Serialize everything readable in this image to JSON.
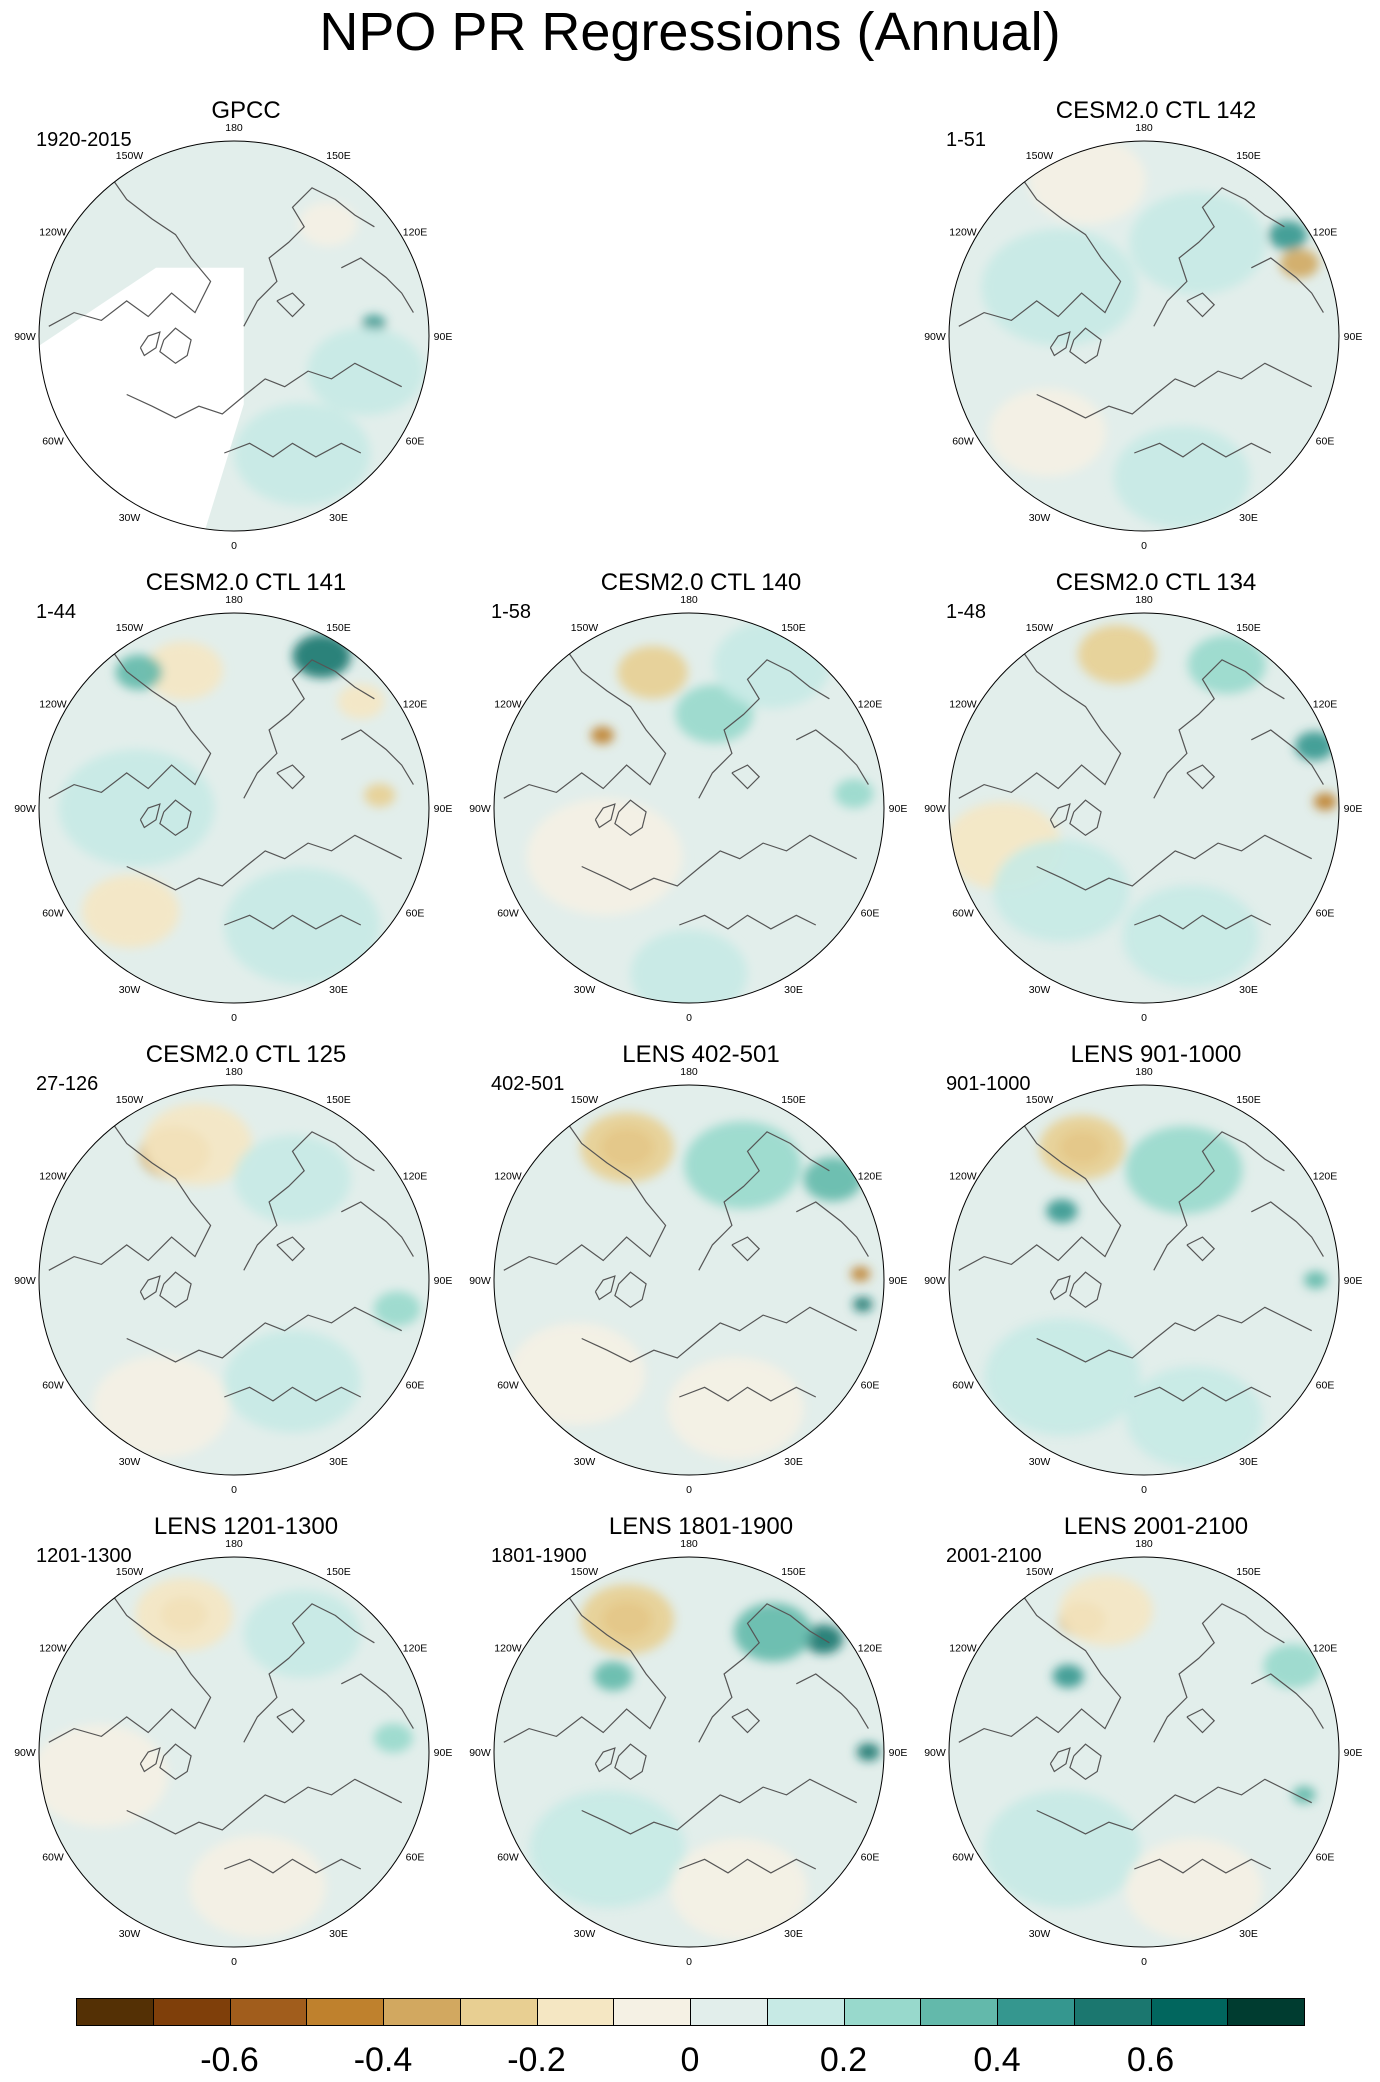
{
  "title": "NPO PR Regressions (Annual)",
  "lon_labels": [
    "180",
    "150E",
    "120E",
    "90E",
    "60E",
    "30E",
    "0",
    "30W",
    "60W",
    "90W",
    "120W",
    "150W"
  ],
  "panels": [
    {
      "title": "GPCC",
      "period": "1920-2015",
      "land_masked": true,
      "features": [
        {
          "lon": 95,
          "r": 0.72,
          "value": 0.4,
          "size": 0.06
        },
        {
          "lon": 75,
          "r": 0.7,
          "value": 0.15,
          "size": 0.3
        },
        {
          "lon": 140,
          "r": 0.75,
          "value": -0.1,
          "size": 0.15
        },
        {
          "lon": 30,
          "r": 0.7,
          "value": 0.1,
          "size": 0.35
        }
      ]
    },
    {
      "title": "CESM2.0 CTL 142",
      "period": "1-51",
      "land_masked": false,
      "features": [
        {
          "lon": 115,
          "r": 0.88,
          "value": -0.4,
          "size": 0.1
        },
        {
          "lon": 125,
          "r": 0.9,
          "value": 0.4,
          "size": 0.1
        },
        {
          "lon": -160,
          "r": 0.85,
          "value": -0.1,
          "size": 0.3
        },
        {
          "lon": -120,
          "r": 0.5,
          "value": 0.1,
          "size": 0.4
        },
        {
          "lon": 150,
          "r": 0.55,
          "value": 0.15,
          "size": 0.35
        },
        {
          "lon": -45,
          "r": 0.7,
          "value": -0.1,
          "size": 0.3
        },
        {
          "lon": 15,
          "r": 0.75,
          "value": 0.15,
          "size": 0.35
        }
      ]
    },
    {
      "title": "CESM2.0 CTL 141",
      "period": "1-44",
      "land_masked": false,
      "features": [
        {
          "lon": 150,
          "r": 0.9,
          "value": 0.5,
          "size": 0.15
        },
        {
          "lon": -160,
          "r": 0.75,
          "value": -0.2,
          "size": 0.2
        },
        {
          "lon": -145,
          "r": 0.85,
          "value": 0.3,
          "size": 0.12
        },
        {
          "lon": 95,
          "r": 0.75,
          "value": -0.3,
          "size": 0.08
        },
        {
          "lon": 130,
          "r": 0.85,
          "value": -0.2,
          "size": 0.12
        },
        {
          "lon": -90,
          "r": 0.5,
          "value": 0.15,
          "size": 0.4
        },
        {
          "lon": -45,
          "r": 0.75,
          "value": -0.15,
          "size": 0.25
        },
        {
          "lon": 30,
          "r": 0.7,
          "value": 0.1,
          "size": 0.4
        }
      ]
    },
    {
      "title": "CESM2.0 CTL 140",
      "period": "1-58",
      "land_masked": false,
      "features": [
        {
          "lon": -165,
          "r": 0.72,
          "value": -0.3,
          "size": 0.18
        },
        {
          "lon": -130,
          "r": 0.58,
          "value": -0.5,
          "size": 0.06
        },
        {
          "lon": 165,
          "r": 0.5,
          "value": 0.2,
          "size": 0.2
        },
        {
          "lon": 150,
          "r": 0.85,
          "value": 0.15,
          "size": 0.3
        },
        {
          "lon": 95,
          "r": 0.85,
          "value": 0.25,
          "size": 0.1
        },
        {
          "lon": -60,
          "r": 0.5,
          "value": -0.1,
          "size": 0.4
        },
        {
          "lon": 0,
          "r": 0.85,
          "value": 0.1,
          "size": 0.3
        }
      ]
    },
    {
      "title": "CESM2.0 CTL 134",
      "period": "1-48",
      "land_masked": false,
      "features": [
        {
          "lon": -170,
          "r": 0.8,
          "value": -0.3,
          "size": 0.2
        },
        {
          "lon": 92,
          "r": 0.93,
          "value": -0.5,
          "size": 0.06
        },
        {
          "lon": 110,
          "r": 0.93,
          "value": 0.4,
          "size": 0.1
        },
        {
          "lon": 150,
          "r": 0.85,
          "value": 0.25,
          "size": 0.2
        },
        {
          "lon": -75,
          "r": 0.75,
          "value": -0.15,
          "size": 0.3
        },
        {
          "lon": -45,
          "r": 0.6,
          "value": 0.1,
          "size": 0.35
        },
        {
          "lon": 20,
          "r": 0.7,
          "value": 0.1,
          "size": 0.35
        }
      ]
    },
    {
      "title": "CESM2.0 CTL 125",
      "period": "27-126",
      "land_masked": false,
      "features": [
        {
          "lon": -155,
          "r": 0.72,
          "value": -0.4,
          "size": 0.18
        },
        {
          "lon": -165,
          "r": 0.72,
          "value": -0.2,
          "size": 0.28
        },
        {
          "lon": 150,
          "r": 0.6,
          "value": 0.15,
          "size": 0.3
        },
        {
          "lon": 80,
          "r": 0.85,
          "value": 0.2,
          "size": 0.12
        },
        {
          "lon": -30,
          "r": 0.75,
          "value": -0.1,
          "size": 0.35
        },
        {
          "lon": 30,
          "r": 0.6,
          "value": 0.1,
          "size": 0.35
        }
      ]
    },
    {
      "title": "LENS 402-501",
      "period": "402-501",
      "land_masked": false,
      "features": [
        {
          "lon": -155,
          "r": 0.75,
          "value": -0.5,
          "size": 0.14
        },
        {
          "lon": -155,
          "r": 0.75,
          "value": -0.3,
          "size": 0.24
        },
        {
          "lon": 155,
          "r": 0.65,
          "value": 0.25,
          "size": 0.3
        },
        {
          "lon": 125,
          "r": 0.9,
          "value": 0.35,
          "size": 0.15
        },
        {
          "lon": 92,
          "r": 0.88,
          "value": -0.5,
          "size": 0.05
        },
        {
          "lon": 82,
          "r": 0.9,
          "value": 0.5,
          "size": 0.05
        },
        {
          "lon": -50,
          "r": 0.75,
          "value": -0.1,
          "size": 0.35
        },
        {
          "lon": 20,
          "r": 0.7,
          "value": -0.08,
          "size": 0.35
        }
      ]
    },
    {
      "title": "LENS 901-1000",
      "period": "901-1000",
      "land_masked": false,
      "features": [
        {
          "lon": -155,
          "r": 0.75,
          "value": -0.45,
          "size": 0.12
        },
        {
          "lon": -155,
          "r": 0.75,
          "value": -0.25,
          "size": 0.22
        },
        {
          "lon": 160,
          "r": 0.6,
          "value": 0.2,
          "size": 0.3
        },
        {
          "lon": -130,
          "r": 0.55,
          "value": 0.4,
          "size": 0.08
        },
        {
          "lon": 90,
          "r": 0.88,
          "value": 0.3,
          "size": 0.06
        },
        {
          "lon": -40,
          "r": 0.65,
          "value": 0.1,
          "size": 0.4
        },
        {
          "lon": 20,
          "r": 0.75,
          "value": 0.1,
          "size": 0.35
        }
      ]
    },
    {
      "title": "LENS 1201-1300",
      "period": "1201-1300",
      "land_masked": false,
      "features": [
        {
          "lon": -160,
          "r": 0.75,
          "value": -0.4,
          "size": 0.12
        },
        {
          "lon": -160,
          "r": 0.75,
          "value": -0.2,
          "size": 0.25
        },
        {
          "lon": 150,
          "r": 0.7,
          "value": 0.15,
          "size": 0.3
        },
        {
          "lon": 95,
          "r": 0.82,
          "value": 0.2,
          "size": 0.1
        },
        {
          "lon": -80,
          "r": 0.7,
          "value": -0.1,
          "size": 0.35
        },
        {
          "lon": 10,
          "r": 0.7,
          "value": -0.1,
          "size": 0.35
        }
      ]
    },
    {
      "title": "LENS 1801-1900",
      "period": "1801-1900",
      "land_masked": false,
      "features": [
        {
          "lon": -155,
          "r": 0.75,
          "value": -0.5,
          "size": 0.13
        },
        {
          "lon": -155,
          "r": 0.75,
          "value": -0.3,
          "size": 0.24
        },
        {
          "lon": 130,
          "r": 0.9,
          "value": 0.6,
          "size": 0.1
        },
        {
          "lon": 145,
          "r": 0.75,
          "value": 0.3,
          "size": 0.2
        },
        {
          "lon": 90,
          "r": 0.92,
          "value": 0.6,
          "size": 0.06
        },
        {
          "lon": -135,
          "r": 0.55,
          "value": 0.35,
          "size": 0.1
        },
        {
          "lon": -40,
          "r": 0.65,
          "value": 0.1,
          "size": 0.4
        },
        {
          "lon": 20,
          "r": 0.75,
          "value": -0.08,
          "size": 0.35
        }
      ]
    },
    {
      "title": "LENS 2001-2100",
      "period": "2001-2100",
      "land_masked": false,
      "features": [
        {
          "lon": -155,
          "r": 0.75,
          "value": -0.4,
          "size": 0.12
        },
        {
          "lon": -165,
          "r": 0.75,
          "value": -0.2,
          "size": 0.24
        },
        {
          "lon": -135,
          "r": 0.55,
          "value": 0.4,
          "size": 0.08
        },
        {
          "lon": 120,
          "r": 0.88,
          "value": 0.2,
          "size": 0.15
        },
        {
          "lon": 75,
          "r": 0.85,
          "value": 0.35,
          "size": 0.06
        },
        {
          "lon": -40,
          "r": 0.65,
          "value": 0.1,
          "size": 0.4
        },
        {
          "lon": 20,
          "r": 0.75,
          "value": -0.08,
          "size": 0.35
        }
      ]
    }
  ],
  "colorbar": {
    "colors": [
      "#543005",
      "#7f3f0a",
      "#a15d1c",
      "#bf812d",
      "#d2a860",
      "#e8cf92",
      "#f5e7c3",
      "#f5f1e4",
      "#e2eeeb",
      "#c7eae5",
      "#98d9cc",
      "#63b9ab",
      "#35978f",
      "#1b776f",
      "#01665e",
      "#003c30"
    ],
    "labels": [
      "-0.6",
      "-0.4",
      "-0.2",
      "0",
      "0.2",
      "0.4",
      "0.6"
    ]
  }
}
